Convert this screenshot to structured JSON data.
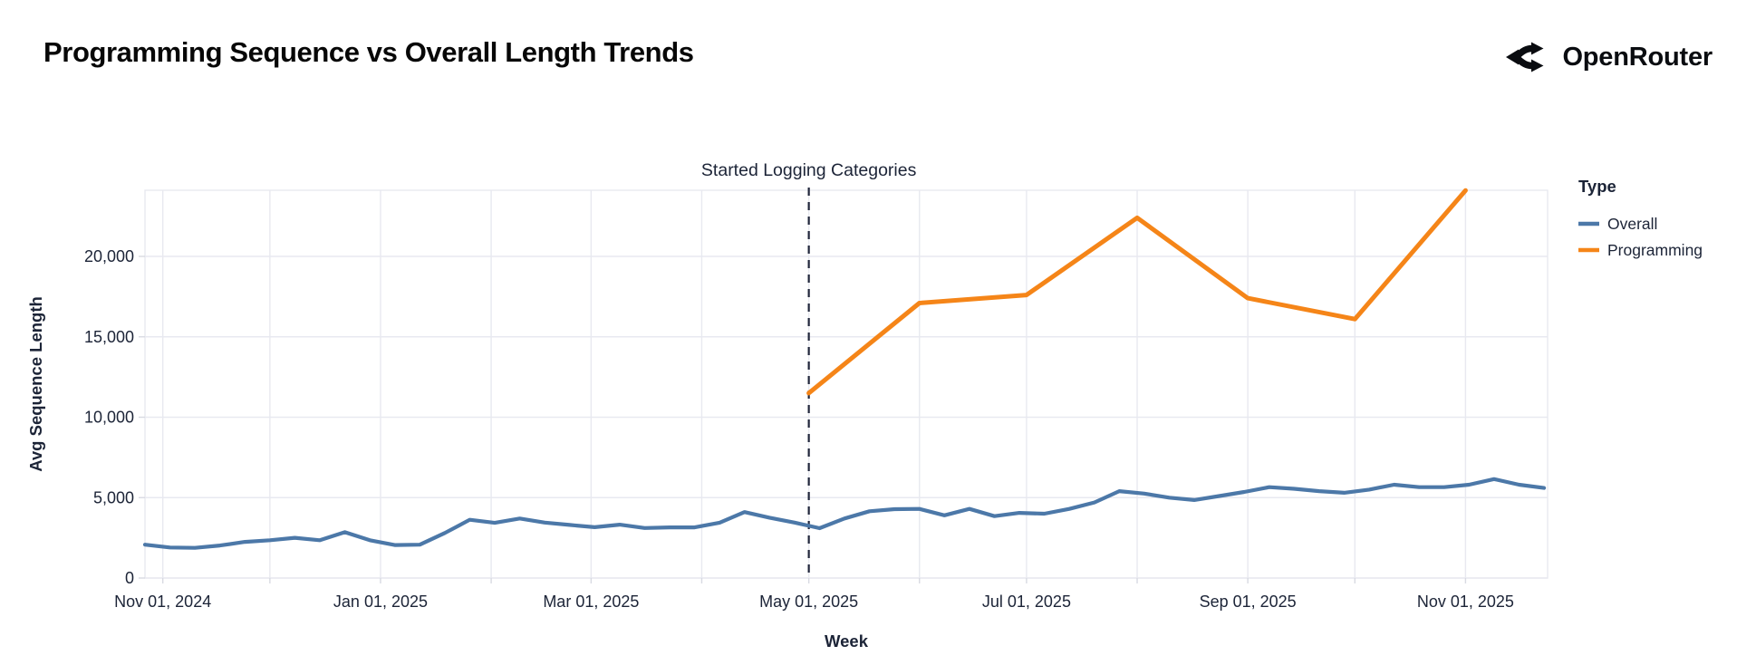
{
  "header": {
    "title": "Programming Sequence vs Overall Length Trends",
    "brand": "OpenRouter"
  },
  "chart_data": {
    "type": "line",
    "title": "Programming Sequence vs Overall Length Trends",
    "xlabel": "Week",
    "ylabel": "Avg Sequence Length",
    "x_domain": [
      "2024-10-27",
      "2025-11-24"
    ],
    "ylim": [
      0,
      24300
    ],
    "grid": "on",
    "colors": {
      "overall": "#4c78a8",
      "programming": "#f58518",
      "gridline": "#e8e9f0",
      "axis_text": "#1c2437",
      "tick_mark": "#d8dae2",
      "annotation_line": "#20263b"
    },
    "y_axis": {
      "title": "Avg Sequence Length",
      "ticks": [
        {
          "value": 0,
          "label": "0"
        },
        {
          "value": 5000,
          "label": "5,000"
        },
        {
          "value": 10000,
          "label": "10,000"
        },
        {
          "value": 15000,
          "label": "15,000"
        },
        {
          "value": 20000,
          "label": "20,000"
        }
      ]
    },
    "x_axis": {
      "title": "Week",
      "gridline_dates": [
        "2024-11-01",
        "2024-12-01",
        "2025-01-01",
        "2025-02-01",
        "2025-03-01",
        "2025-04-01",
        "2025-05-01",
        "2025-06-01",
        "2025-07-01",
        "2025-08-01",
        "2025-09-01",
        "2025-10-01",
        "2025-11-01"
      ],
      "ticks": [
        {
          "date": "2024-11-01",
          "label": "Nov 01, 2024"
        },
        {
          "date": "2025-01-01",
          "label": "Jan 01, 2025"
        },
        {
          "date": "2025-03-01",
          "label": "Mar 01, 2025"
        },
        {
          "date": "2025-05-01",
          "label": "May 01, 2025"
        },
        {
          "date": "2025-07-01",
          "label": "Jul 01, 2025"
        },
        {
          "date": "2025-09-01",
          "label": "Sep 01, 2025"
        },
        {
          "date": "2025-11-01",
          "label": "Nov 01, 2025"
        }
      ]
    },
    "annotation": {
      "text": "Started Logging Categories",
      "date": "2025-05-01"
    },
    "legend": {
      "title": "Type",
      "position": "right",
      "entries": [
        {
          "label": "Overall",
          "color": "#4c78a8"
        },
        {
          "label": "Programming",
          "color": "#f58518"
        }
      ]
    },
    "series": [
      {
        "name": "Overall",
        "color": "#4c78a8",
        "stroke_width": 4.2,
        "points": [
          [
            "2024-10-27",
            2075
          ],
          [
            "2024-11-03",
            1900
          ],
          [
            "2024-11-10",
            1875
          ],
          [
            "2024-11-17",
            2025
          ],
          [
            "2024-11-24",
            2250
          ],
          [
            "2024-12-01",
            2350
          ],
          [
            "2024-12-08",
            2500
          ],
          [
            "2024-12-15",
            2350
          ],
          [
            "2024-12-22",
            2850
          ],
          [
            "2024-12-29",
            2350
          ],
          [
            "2025-01-05",
            2050
          ],
          [
            "2025-01-12",
            2075
          ],
          [
            "2025-01-19",
            2800
          ],
          [
            "2025-01-26",
            3620
          ],
          [
            "2025-02-02",
            3430
          ],
          [
            "2025-02-09",
            3700
          ],
          [
            "2025-02-16",
            3450
          ],
          [
            "2025-02-23",
            3300
          ],
          [
            "2025-03-02",
            3160
          ],
          [
            "2025-03-09",
            3320
          ],
          [
            "2025-03-16",
            3110
          ],
          [
            "2025-03-23",
            3150
          ],
          [
            "2025-03-30",
            3150
          ],
          [
            "2025-04-06",
            3440
          ],
          [
            "2025-04-13",
            4100
          ],
          [
            "2025-04-20",
            3750
          ],
          [
            "2025-04-27",
            3450
          ],
          [
            "2025-05-04",
            3100
          ],
          [
            "2025-05-11",
            3700
          ],
          [
            "2025-05-18",
            4150
          ],
          [
            "2025-05-25",
            4280
          ],
          [
            "2025-06-01",
            4300
          ],
          [
            "2025-06-08",
            3900
          ],
          [
            "2025-06-15",
            4300
          ],
          [
            "2025-06-22",
            3850
          ],
          [
            "2025-06-29",
            4050
          ],
          [
            "2025-07-06",
            4000
          ],
          [
            "2025-07-13",
            4300
          ],
          [
            "2025-07-20",
            4700
          ],
          [
            "2025-07-27",
            5400
          ],
          [
            "2025-08-03",
            5250
          ],
          [
            "2025-08-10",
            5000
          ],
          [
            "2025-08-17",
            4850
          ],
          [
            "2025-08-24",
            5100
          ],
          [
            "2025-08-31",
            5350
          ],
          [
            "2025-09-07",
            5650
          ],
          [
            "2025-09-14",
            5550
          ],
          [
            "2025-09-21",
            5400
          ],
          [
            "2025-09-28",
            5300
          ],
          [
            "2025-10-05",
            5500
          ],
          [
            "2025-10-12",
            5800
          ],
          [
            "2025-10-19",
            5650
          ],
          [
            "2025-10-26",
            5650
          ],
          [
            "2025-11-02",
            5800
          ],
          [
            "2025-11-09",
            6150
          ],
          [
            "2025-11-16",
            5800
          ],
          [
            "2025-11-23",
            5600
          ]
        ]
      },
      {
        "name": "Programming",
        "color": "#f58518",
        "stroke_width": 5,
        "points": [
          [
            "2025-05-01",
            11500
          ],
          [
            "2025-06-01",
            17100
          ],
          [
            "2025-07-01",
            17600
          ],
          [
            "2025-08-01",
            22400
          ],
          [
            "2025-09-01",
            17400
          ],
          [
            "2025-10-01",
            16100
          ],
          [
            "2025-11-01",
            24100
          ]
        ]
      }
    ]
  }
}
